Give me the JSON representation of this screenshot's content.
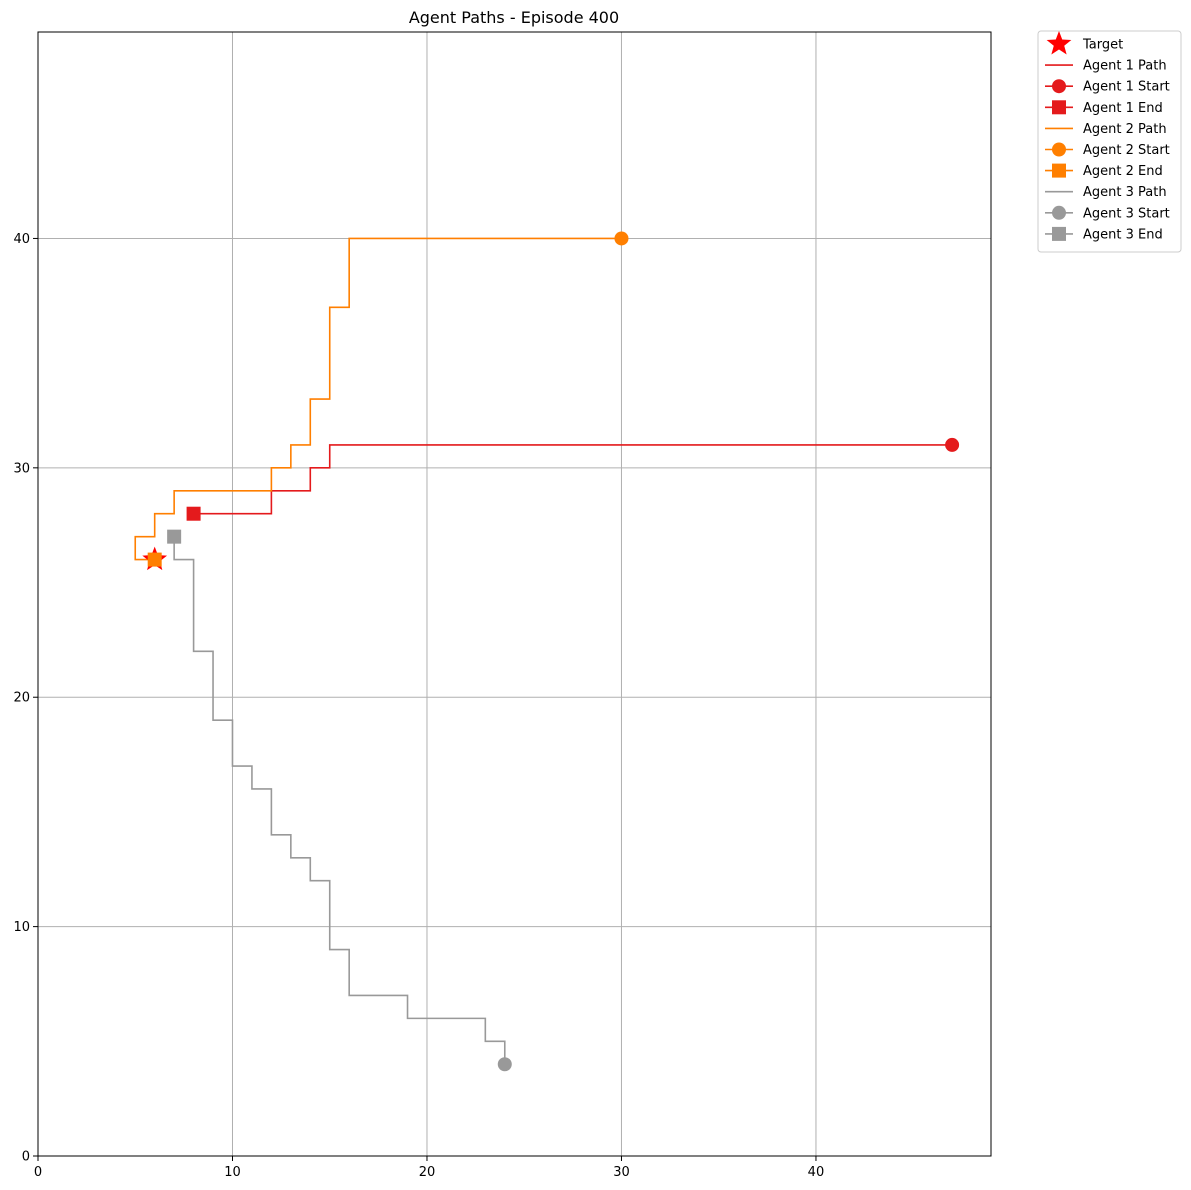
{
  "chart_data": {
    "type": "line",
    "title": "Agent Paths - Episode 400",
    "xlabel": "",
    "ylabel": "",
    "xlim": [
      0,
      49
    ],
    "ylim": [
      0,
      49
    ],
    "xticks": [
      0,
      10,
      20,
      30,
      40
    ],
    "yticks": [
      0,
      10,
      20,
      30,
      40
    ],
    "grid": true,
    "legend_position": "outside-top-right",
    "target": {
      "label": "Target",
      "x": 6,
      "y": 26,
      "color": "#ff0000",
      "marker": "star"
    },
    "series": [
      {
        "name": "Agent 1",
        "path_label": "Agent 1 Path",
        "start_label": "Agent 1 Start",
        "end_label": "Agent 1 End",
        "color": "#e41a1c",
        "points": [
          [
            47,
            31
          ],
          [
            15,
            31
          ],
          [
            15,
            30
          ],
          [
            14,
            30
          ],
          [
            14,
            29
          ],
          [
            12,
            29
          ],
          [
            12,
            28
          ],
          [
            8,
            28
          ]
        ]
      },
      {
        "name": "Agent 2",
        "path_label": "Agent 2 Path",
        "start_label": "Agent 2 Start",
        "end_label": "Agent 2 End",
        "color": "#ff7f00",
        "points": [
          [
            30,
            40
          ],
          [
            16,
            40
          ],
          [
            16,
            37
          ],
          [
            15,
            37
          ],
          [
            15,
            33
          ],
          [
            14,
            33
          ],
          [
            14,
            31
          ],
          [
            13,
            31
          ],
          [
            13,
            30
          ],
          [
            12,
            30
          ],
          [
            12,
            29
          ],
          [
            7,
            29
          ],
          [
            7,
            28
          ],
          [
            6,
            28
          ],
          [
            6,
            27
          ],
          [
            5,
            27
          ],
          [
            5,
            26
          ],
          [
            6,
            26
          ]
        ]
      },
      {
        "name": "Agent 3",
        "path_label": "Agent 3 Path",
        "start_label": "Agent 3 Start",
        "end_label": "Agent 3 End",
        "color": "#999999",
        "points": [
          [
            24,
            4
          ],
          [
            24,
            5
          ],
          [
            23,
            5
          ],
          [
            23,
            6
          ],
          [
            19,
            6
          ],
          [
            19,
            7
          ],
          [
            16,
            7
          ],
          [
            16,
            9
          ],
          [
            15,
            9
          ],
          [
            15,
            12
          ],
          [
            14,
            12
          ],
          [
            14,
            13
          ],
          [
            13,
            13
          ],
          [
            13,
            14
          ],
          [
            12,
            14
          ],
          [
            12,
            16
          ],
          [
            11,
            16
          ],
          [
            11,
            17
          ],
          [
            10,
            17
          ],
          [
            10,
            19
          ],
          [
            9,
            19
          ],
          [
            9,
            22
          ],
          [
            8,
            22
          ],
          [
            8,
            26
          ],
          [
            7,
            26
          ],
          [
            7,
            27
          ]
        ]
      }
    ]
  }
}
